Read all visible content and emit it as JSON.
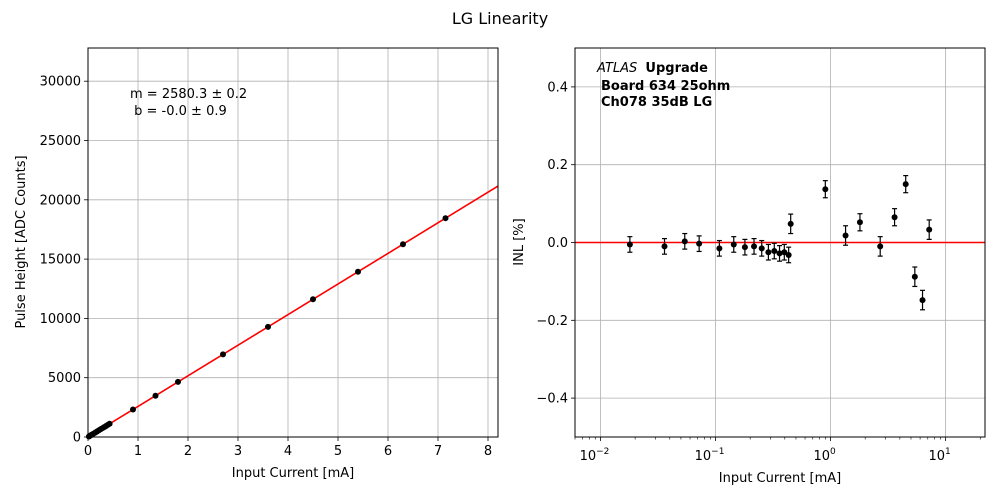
{
  "figure": {
    "suptitle": "LG Linearity"
  },
  "chart_data": [
    {
      "type": "scatter",
      "panel": "left",
      "xlabel": "Input Current [mA]",
      "ylabel": "Pulse Height [ADC Counts]",
      "xlim": [
        0,
        8.2
      ],
      "ylim": [
        0,
        32800
      ],
      "xticks": [
        0,
        1,
        2,
        3,
        4,
        5,
        6,
        7,
        8
      ],
      "xtick_labels": [
        "0",
        "1",
        "2",
        "3",
        "4",
        "5",
        "6",
        "7",
        "8"
      ],
      "yticks": [
        0,
        5000,
        10000,
        15000,
        20000,
        25000,
        30000
      ],
      "ytick_labels": [
        "0",
        "5000",
        "10000",
        "15000",
        "20000",
        "25000",
        "30000"
      ],
      "grid": true,
      "annotation_lines": [
        "m = 2580.3 ± 0.2",
        " b = -0.0 ± 0.9"
      ],
      "fit": {
        "slope": 2580.3,
        "intercept": 0.0,
        "color": "#ff0000"
      },
      "points": {
        "x": [
          0.018,
          0.036,
          0.054,
          0.072,
          0.108,
          0.144,
          0.18,
          0.216,
          0.252,
          0.288,
          0.324,
          0.36,
          0.396,
          0.432,
          0.9,
          1.35,
          1.8,
          2.7,
          3.6,
          4.5,
          5.4,
          6.3,
          7.15
        ],
        "y": [
          46,
          93,
          139,
          186,
          279,
          372,
          464,
          557,
          650,
          743,
          836,
          929,
          1022,
          1115,
          2322,
          3483,
          4645,
          6967,
          9289,
          11611,
          13934,
          16256,
          18450
        ]
      }
    },
    {
      "type": "scatter",
      "panel": "right",
      "xscale": "log",
      "xlabel": "Input Current [mA]",
      "ylabel": "INL [%]",
      "xlim": [
        0.006,
        22
      ],
      "ylim": [
        -0.5,
        0.5
      ],
      "xticks": [
        0.01,
        0.1,
        1,
        10
      ],
      "xtick_base": "10",
      "xtick_exponents": [
        "−2",
        "−1",
        "0",
        "1"
      ],
      "yticks": [
        -0.4,
        -0.2,
        0.0,
        0.2,
        0.4
      ],
      "ytick_labels": [
        "−0.4",
        "−0.2",
        "0.0",
        "0.2",
        "0.4"
      ],
      "grid": true,
      "reference_line": {
        "y": 0.0,
        "color": "#ff0000"
      },
      "legend_title": {
        "italic": "ATLAS",
        "bold": "Upgrade",
        "line2": "Board 634 25ohm",
        "line3": "Ch078 35dB LG"
      },
      "points": {
        "x": [
          0.018,
          0.036,
          0.054,
          0.072,
          0.108,
          0.144,
          0.18,
          0.216,
          0.252,
          0.288,
          0.324,
          0.36,
          0.396,
          0.432,
          0.45,
          0.9,
          1.35,
          1.8,
          2.7,
          3.6,
          4.5,
          5.4,
          6.3,
          7.2
        ],
        "y": [
          -0.005,
          -0.01,
          0.003,
          -0.003,
          -0.015,
          -0.005,
          -0.012,
          -0.01,
          -0.015,
          -0.025,
          -0.022,
          -0.028,
          -0.025,
          -0.032,
          0.048,
          0.137,
          0.018,
          0.052,
          -0.01,
          0.065,
          0.15,
          -0.088,
          -0.148,
          0.033
        ],
        "err": [
          0.02,
          0.02,
          0.02,
          0.02,
          0.02,
          0.02,
          0.02,
          0.02,
          0.02,
          0.02,
          0.02,
          0.02,
          0.02,
          0.02,
          0.025,
          0.022,
          0.025,
          0.022,
          0.025,
          0.022,
          0.022,
          0.025,
          0.025,
          0.025
        ]
      }
    }
  ]
}
